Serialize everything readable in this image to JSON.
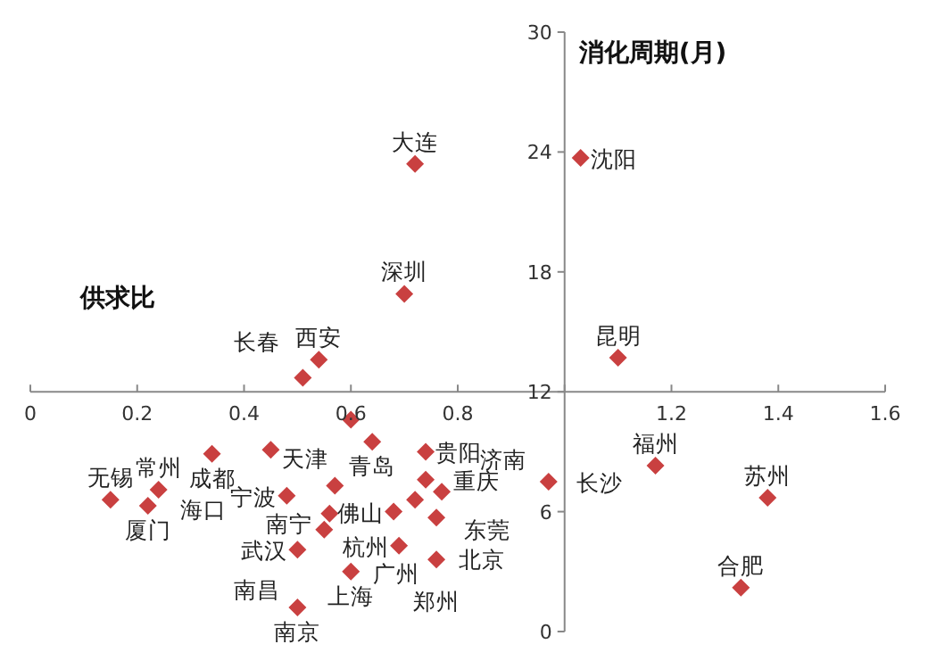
{
  "chart_data": {
    "type": "scatter",
    "xlabel": "供求比",
    "ylabel": "消化周期(月)",
    "marker": "diamond",
    "grid": false,
    "xlim": [
      0,
      1.6
    ],
    "xticks": [
      0,
      0.2,
      0.4,
      0.6,
      0.8,
      {
        "value": 1,
        "label": null
      },
      1.2,
      1.4,
      1.6
    ],
    "ylim": [
      0,
      30
    ],
    "yticks": [
      0,
      6,
      12,
      18,
      24,
      30
    ],
    "series": [
      {
        "color": "#c94040",
        "x": [
          1.03,
          0.72,
          0.7,
          1.1,
          0.54,
          0.51,
          0.6,
          0.64,
          0.74,
          0.57,
          0.74,
          0.72,
          0.77,
          0.56,
          0.55,
          0.68,
          0.76,
          0.5,
          0.69,
          0.76,
          0.6,
          0.5,
          0.97,
          0.15,
          0.24,
          0.22,
          0.34,
          0.45,
          0.48,
          1.17,
          1.38,
          1.33
        ],
        "values": [
          23.7,
          23.4,
          16.9,
          13.7,
          13.6,
          12.7,
          10.6,
          9.5,
          9.0,
          7.3,
          7.6,
          6.6,
          7.0,
          5.9,
          5.1,
          6.0,
          5.7,
          4.1,
          4.3,
          3.6,
          3.0,
          1.2,
          7.5,
          6.6,
          7.1,
          6.3,
          8.9,
          9.1,
          6.8,
          8.3,
          6.7,
          2.2
        ]
      }
    ],
    "annotations": [
      {
        "text": "沈阳",
        "x": 1.03,
        "y": 23.7
      },
      {
        "text": "大连",
        "x": 0.72,
        "y": 23.4
      },
      {
        "text": "深圳",
        "x": 0.7,
        "y": 16.9
      },
      {
        "text": "昆明",
        "x": 1.1,
        "y": 13.7
      },
      {
        "text": "西安",
        "x": 0.54,
        "y": 13.6
      },
      {
        "text": "长春",
        "x": 0.51,
        "y": 12.7
      },
      {
        "text": "天津",
        "x": 0.6,
        "y": 10.6
      },
      {
        "text": "青岛",
        "x": 0.64,
        "y": 9.5
      },
      {
        "text": "贵阳",
        "x": 0.74,
        "y": 9.0
      },
      {
        "text": "南宁",
        "x": 0.57,
        "y": 7.3
      },
      {
        "text": "重庆",
        "x": 0.74,
        "y": 7.6
      },
      {
        "text": "北京",
        "x": 0.72,
        "y": 6.6
      },
      {
        "text": "东莞",
        "x": 0.77,
        "y": 7.0
      },
      {
        "text": "广州",
        "x": 0.56,
        "y": 5.9
      },
      {
        "text": "南昌",
        "x": 0.55,
        "y": 5.1
      },
      {
        "text": "佛山",
        "x": 0.68,
        "y": 6.0
      },
      {
        "text": "济南",
        "x": 0.76,
        "y": 5.7
      },
      {
        "text": "武汉",
        "x": 0.5,
        "y": 4.1
      },
      {
        "text": "杭州",
        "x": 0.69,
        "y": 4.3
      },
      {
        "text": "郑州",
        "x": 0.76,
        "y": 3.6
      },
      {
        "text": "上海",
        "x": 0.6,
        "y": 3.0
      },
      {
        "text": "南京",
        "x": 0.5,
        "y": 1.2
      },
      {
        "text": "长沙",
        "x": 0.97,
        "y": 7.5
      },
      {
        "text": "无锡",
        "x": 0.15,
        "y": 6.6
      },
      {
        "text": "常州",
        "x": 0.24,
        "y": 7.1
      },
      {
        "text": "厦门",
        "x": 0.22,
        "y": 6.3
      },
      {
        "text": "成都",
        "x": 0.34,
        "y": 8.9
      },
      {
        "text": "海口",
        "x": 0.45,
        "y": 9.1
      },
      {
        "text": "宁波",
        "x": 0.48,
        "y": 6.8
      },
      {
        "text": "福州",
        "x": 1.17,
        "y": 8.3
      },
      {
        "text": "苏州",
        "x": 1.38,
        "y": 6.7
      },
      {
        "text": "合肥",
        "x": 1.33,
        "y": 2.2
      }
    ]
  }
}
